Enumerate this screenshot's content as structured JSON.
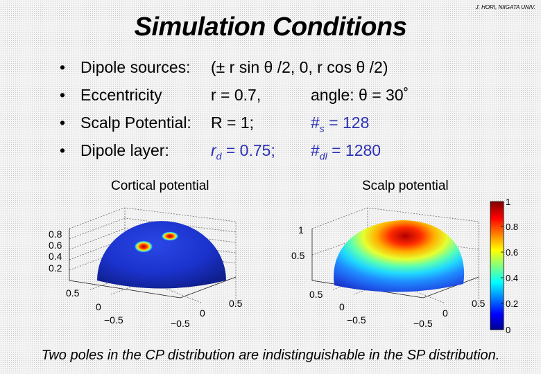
{
  "credit": "J. HORI, NIIGATA UNIV.",
  "title": "Simulation Conditions",
  "bullet_symbol": "•",
  "rows": [
    {
      "label": "Dipole sources:",
      "value1": "(± r sin θ /2, 0, r cos θ /2)",
      "value2": ""
    },
    {
      "label": "Eccentricity",
      "value1": "r = 0.7,",
      "value2": "angle:   θ = 30˚"
    },
    {
      "label": "Scalp Potential:",
      "value1": "R = 1;",
      "value2_sym": "#",
      "value2_sub": "s",
      "value2_rest": " = 128"
    },
    {
      "label": "Dipole layer:",
      "value1_sym": "r",
      "value1_sub": "d",
      "value1_rest": " = 0.75;",
      "value2_sym": "#",
      "value2_sub": "dl",
      "value2_rest": " = 1280"
    }
  ],
  "plots": {
    "left_title": "Cortical potential",
    "right_title": "Scalp potential",
    "left_z_ticks": [
      "0.8",
      "0.6",
      "0.4",
      "0.2"
    ],
    "right_z_ticks": [
      "1",
      "0.5"
    ],
    "y_ticks": [
      "0.5",
      "0",
      "−0.5"
    ],
    "x_ticks": [
      "0.5",
      "0",
      "−0.5"
    ],
    "colorbar_ticks": [
      "1",
      "0.8",
      "0.6",
      "0.4",
      "0.2",
      "0"
    ]
  },
  "colors": {
    "accent_blue": "#2b2fb6",
    "hot": "#b40000",
    "cold": "#1a2fc8"
  },
  "caption": "Two poles in the CP distribution are indistinguishable in the SP distribution."
}
